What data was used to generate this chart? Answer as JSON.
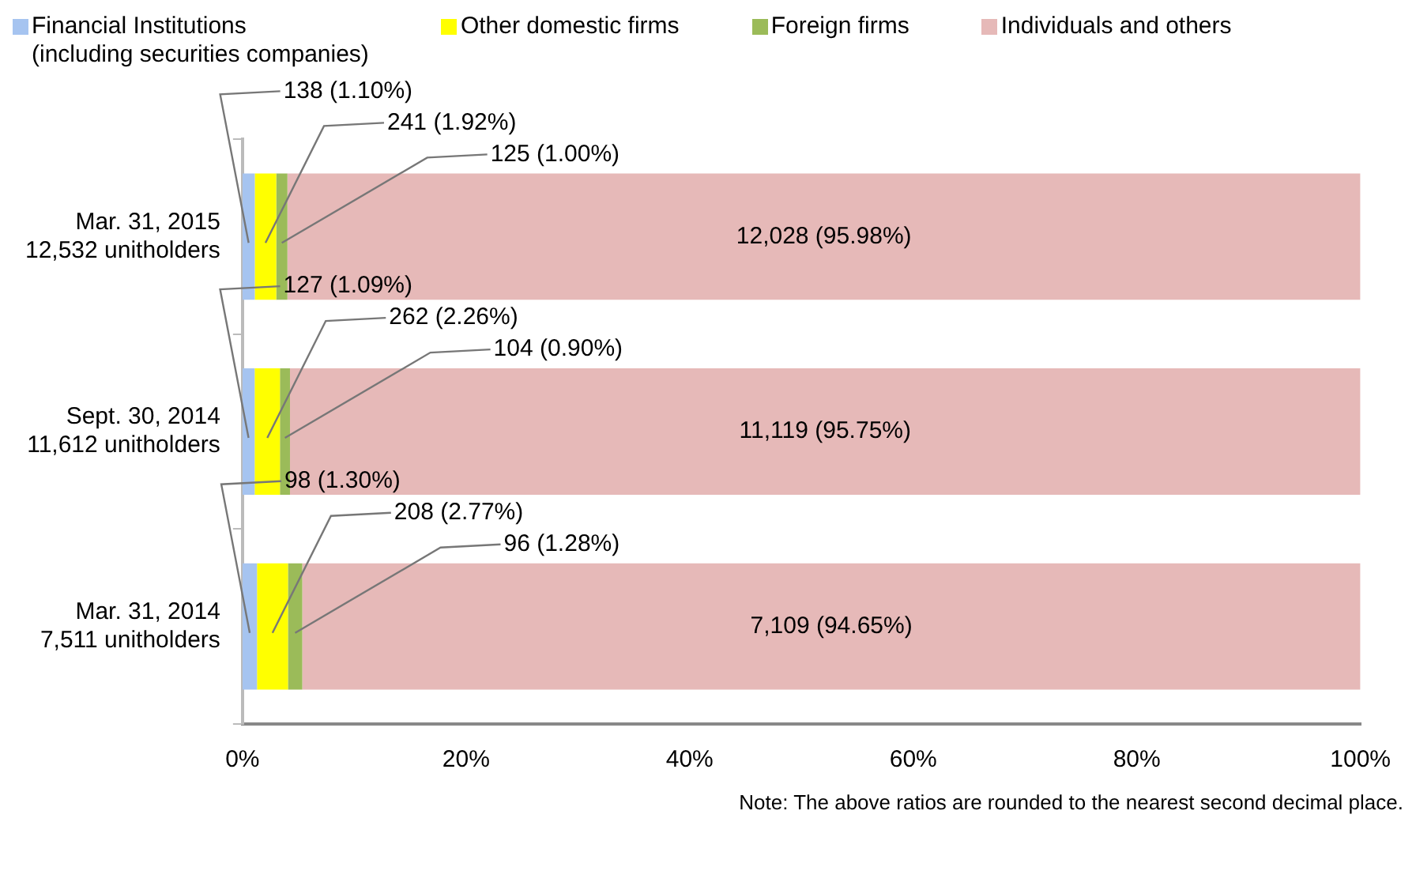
{
  "chart_data": {
    "type": "bar",
    "orientation": "horizontal",
    "stacked": true,
    "categories": [
      "Mar. 31, 2015\n12,532 unitholders",
      "Sept. 30, 2014\n11,612 unitholders",
      "Mar. 31, 2014\n7,511 unitholders"
    ],
    "series": [
      {
        "name": "Financial Institutions\n(including securities companies)",
        "color": "#a6c4f0",
        "values": [
          1.1,
          1.09,
          1.3
        ],
        "value_labels": [
          "138 (1.10%)",
          "127 (1.09%)",
          "98 (1.30%)"
        ]
      },
      {
        "name": "Other domestic firms",
        "color": "#ffff00",
        "values": [
          1.92,
          2.26,
          2.77
        ],
        "value_labels": [
          "241 (1.92%)",
          "262 (2.26%)",
          "208 (2.77%)"
        ]
      },
      {
        "name": "Foreign firms",
        "color": "#9bbb59",
        "values": [
          1.0,
          0.9,
          1.28
        ],
        "value_labels": [
          "125 (1.00%)",
          "104 (0.90%)",
          "96 (1.28%)"
        ]
      },
      {
        "name": "Individuals and others",
        "color": "#e6b9b8",
        "values": [
          95.98,
          95.75,
          94.65
        ],
        "value_labels": [
          "12,028 (95.98%)",
          "11,119 (95.75%)",
          "7,109 (94.65%)"
        ]
      }
    ],
    "xlim": [
      0,
      100
    ],
    "xticks": [
      {
        "value": 0,
        "label": "0%"
      },
      {
        "value": 20,
        "label": "20%"
      },
      {
        "value": 40,
        "label": "40%"
      },
      {
        "value": 60,
        "label": "60%"
      },
      {
        "value": 80,
        "label": "80%"
      },
      {
        "value": 100,
        "label": "100%"
      }
    ],
    "grid": false,
    "legend": "top",
    "annotations": [
      "Note: The above ratios are rounded to the nearest second decimal place."
    ]
  }
}
